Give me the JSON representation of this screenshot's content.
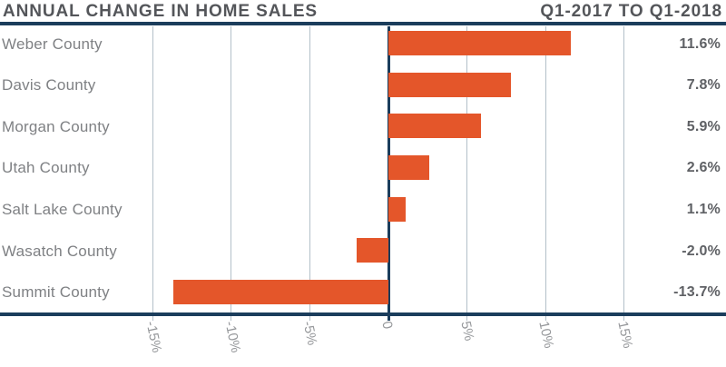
{
  "chart_data": {
    "type": "bar",
    "orientation": "horizontal",
    "title": "ANNUAL CHANGE IN HOME SALES",
    "subtitle": "Q1-2017 TO Q1-2018",
    "categories": [
      "Weber County",
      "Davis County",
      "Morgan County",
      "Utah County",
      "Salt Lake County",
      "Wasatch County",
      "Summit County"
    ],
    "values": [
      11.6,
      7.8,
      5.9,
      2.6,
      1.1,
      -2.0,
      -13.7
    ],
    "value_labels": [
      "11.6%",
      "7.8%",
      "5.9%",
      "2.6%",
      "1.1%",
      "-2.0%",
      "-13.7%"
    ],
    "unit": "percent",
    "xlim": [
      -15,
      15
    ],
    "x_ticks": [
      -15,
      -10,
      -5,
      0,
      5,
      10,
      15
    ],
    "x_tick_labels": [
      "-15%",
      "-10%",
      "-5%",
      "0",
      "5%",
      "10%",
      "15%"
    ],
    "grid": true,
    "legend": "none"
  },
  "colors": {
    "bar_orange": "#E4562A",
    "rule_navy": "#1B3D5C",
    "gridline": "#B3C0C9",
    "title_text": "#54565A",
    "category_text": "#7F8184",
    "value_text": "#5F6165",
    "tick_text": "#96989B",
    "background": "#FFFFFF"
  }
}
